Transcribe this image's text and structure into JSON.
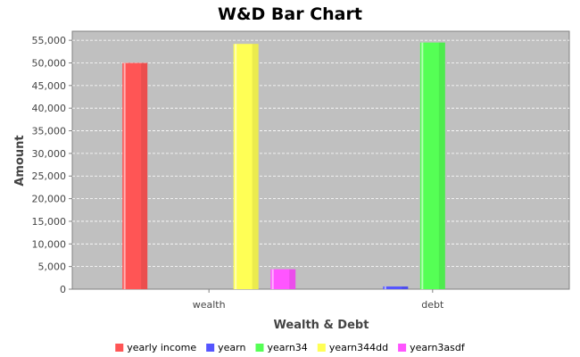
{
  "chart_data": {
    "type": "bar",
    "title": "W&D Bar Chart",
    "xlabel": "Wealth & Debt",
    "ylabel": "Amount",
    "categories": [
      "wealth",
      "debt"
    ],
    "ylim": [
      0,
      57000
    ],
    "yticks": [
      0,
      5000,
      10000,
      15000,
      20000,
      25000,
      30000,
      35000,
      40000,
      45000,
      50000,
      55000
    ],
    "ytick_labels": [
      "0",
      "5,000",
      "10,000",
      "15,000",
      "20,000",
      "25,000",
      "30,000",
      "35,000",
      "40,000",
      "45,000",
      "50,000",
      "55,000"
    ],
    "grid": true,
    "legend_position": "bottom",
    "background_color": "#c0c0c0",
    "series": [
      {
        "name": "yearly income",
        "color": "#ff5555",
        "values": [
          50000,
          0
        ]
      },
      {
        "name": "yearn",
        "color": "#5555ff",
        "values": [
          0,
          600
        ]
      },
      {
        "name": "yearn34",
        "color": "#55ff55",
        "values": [
          0,
          54500
        ]
      },
      {
        "name": "yearn344dd",
        "color": "#ffff55",
        "values": [
          54200,
          0
        ]
      },
      {
        "name": "yearn3asdf",
        "color": "#ff55ff",
        "values": [
          4400,
          0
        ]
      }
    ]
  }
}
